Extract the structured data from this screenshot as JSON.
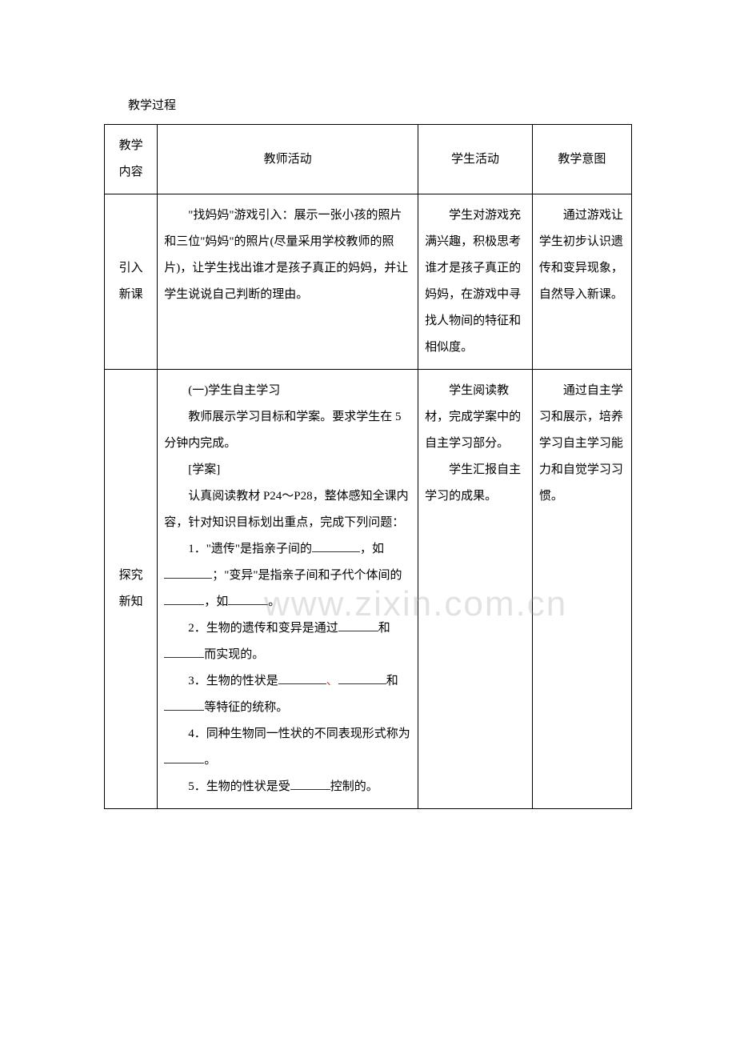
{
  "title": "教学过程",
  "watermark": "www.zixin.com.cn",
  "headers": {
    "col1": "教学\n内容",
    "col2": "教师活动",
    "col3": "学生活动",
    "col4": "教学意图"
  },
  "row1": {
    "label": "引入\n新课",
    "teacher": "\"找妈妈\"游戏引入：展示一张小孩的照片和三位\"妈妈\"的照片(尽量采用学校教师的照片)，让学生找出谁才是孩子真正的妈妈，并让学生说说自己判断的理由。",
    "student": "学生对游戏充满兴趣，积极思考谁才是孩子真正的妈妈，在游戏中寻找人物间的特征和相似度。",
    "intent": "通过游戏让学生初步认识遗传和变异现象，自然导入新课。"
  },
  "row2": {
    "label": "探究\n新知",
    "teacher_p1": "(一)学生自主学习",
    "teacher_p2": "教师展示学习目标和学案。要求学生在 5 分钟内完成。",
    "teacher_p3": "[学案]",
    "teacher_p4": "认真阅读教材 P24～P28，整体感知全课内容，针对知识目标划出重点，完成下列问题：",
    "q1_a": "1．\"遗传\"是指亲子间的",
    "q1_b": "，如",
    "q1_c": "；\"变异\"是指亲子间和子代个体间的",
    "q1_d": "，如",
    "q1_e": "。",
    "q2_a": "2．生物的遗传和变异是通过",
    "q2_b": "和",
    "q2_c": "而实现的。",
    "q3_a": "3．生物的性状是",
    "q3_sep": "、",
    "q3_b": "和",
    "q3_c": "等特征的统称。",
    "q4_a": "4．同种生物同一性状的不同表现形式称为",
    "q4_b": "。",
    "q5_a": "5．生物的性状是受",
    "q5_b": "控制的。",
    "student_p1": "学生阅读教材，完成学案中的自主学习部分。",
    "student_p2": "学生汇报自主学习的成果。",
    "intent": "通过自主学习和展示，培养学习自主学习能力和自觉学习习惯。"
  }
}
